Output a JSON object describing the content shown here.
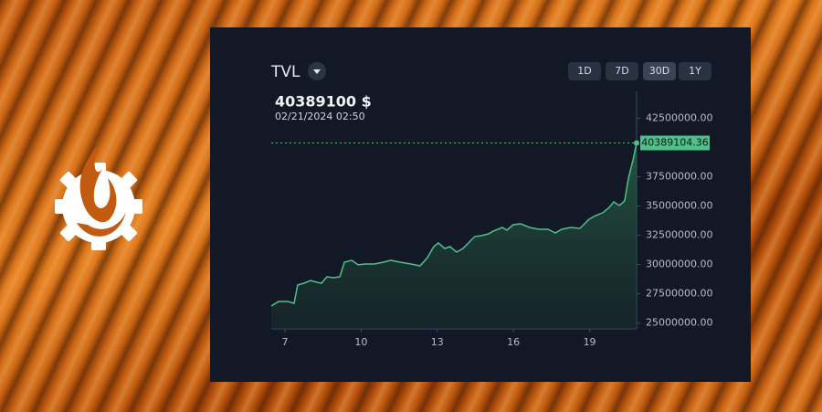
{
  "header": {
    "title": "TVL",
    "value": "40389100 $",
    "time": "02/21/2024 02:50"
  },
  "buttons": [
    "1D",
    "7D",
    "30D",
    "1Y"
  ],
  "active_button": 2,
  "chart_data": {
    "type": "area",
    "x": [
      6.46,
      6.75,
      7.11,
      7.36,
      7.5,
      7.75,
      8.01,
      8.26,
      8.44,
      8.65,
      8.91,
      9.16,
      9.34,
      9.63,
      9.88,
      10.16,
      10.52,
      10.88,
      11.17,
      11.53,
      11.96,
      12.32,
      12.61,
      12.86,
      13.04,
      13.29,
      13.5,
      13.76,
      14.01,
      14.3,
      14.48,
      14.73,
      15.02,
      15.2,
      15.56,
      15.74,
      15.99,
      16.28,
      16.64,
      17.0,
      17.36,
      17.65,
      17.9,
      18.26,
      18.62,
      18.98,
      19.23,
      19.52,
      19.77,
      19.95,
      20.17,
      20.38,
      20.53,
      20.71,
      20.85
    ],
    "series": [
      {
        "color": "#4fc08a",
        "values": [
          26450000,
          26840000,
          26840000,
          26690000,
          28250000,
          28400000,
          28640000,
          28480000,
          28400000,
          28950000,
          28870000,
          28950000,
          30200000,
          30360000,
          29970000,
          30040000,
          30040000,
          30200000,
          30360000,
          30200000,
          30040000,
          29890000,
          30590000,
          31530000,
          31840000,
          31370000,
          31530000,
          31060000,
          31370000,
          32000000,
          32390000,
          32460000,
          32620000,
          32850000,
          33170000,
          32930000,
          33400000,
          33480000,
          33170000,
          33010000,
          33010000,
          32700000,
          33010000,
          33170000,
          33090000,
          33870000,
          34180000,
          34420000,
          34880000,
          35350000,
          35040000,
          35430000,
          37380000,
          38940000,
          40389104.36
        ]
      }
    ],
    "xlim": [
      6.46,
      20.85
    ],
    "xticks": [
      7,
      10,
      13,
      16,
      19
    ],
    "ylim": [
      24500000,
      44800000
    ],
    "yticks": [
      {
        "value": 25000000,
        "label": "25000000.00"
      },
      {
        "value": 27500000,
        "label": "27500000.00"
      },
      {
        "value": 30000000,
        "label": "30000000.00"
      },
      {
        "value": 32500000,
        "label": "32500000.00"
      },
      {
        "value": 35000000,
        "label": "35000000.00"
      },
      {
        "value": 37500000,
        "label": "37500000.00"
      },
      {
        "value": 42500000,
        "label": "42500000.00"
      }
    ]
  }
}
